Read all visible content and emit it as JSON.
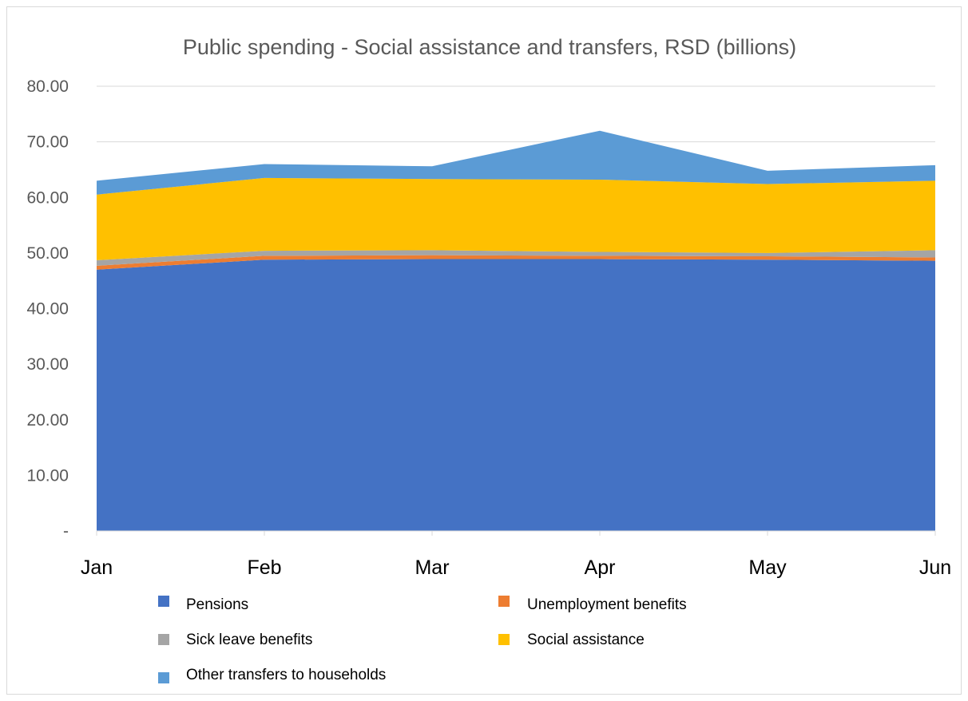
{
  "chart_data": {
    "type": "area",
    "stacked": true,
    "title": "Public spending - Social assistance and transfers, RSD (billions)",
    "xlabel": "",
    "ylabel": "",
    "categories": [
      "Jan",
      "Feb",
      "Mar",
      "Apr",
      "May",
      "Jun"
    ],
    "ylim": [
      0,
      80
    ],
    "yticks": [
      {
        "value": 0,
        "label": "-"
      },
      {
        "value": 10,
        "label": "10.00"
      },
      {
        "value": 20,
        "label": "20.00"
      },
      {
        "value": 30,
        "label": "30.00"
      },
      {
        "value": 40,
        "label": "40.00"
      },
      {
        "value": 50,
        "label": "50.00"
      },
      {
        "value": 60,
        "label": "60.00"
      },
      {
        "value": 70,
        "label": "70.00"
      },
      {
        "value": 80,
        "label": "80.00"
      }
    ],
    "grid": true,
    "legend_position": "bottom",
    "series": [
      {
        "name": "Pensions",
        "color": "#4472C4",
        "values": [
          47.0,
          48.8,
          48.9,
          48.9,
          48.8,
          48.6
        ]
      },
      {
        "name": "Unemployment benefits",
        "color": "#ED7D31",
        "values": [
          0.7,
          0.7,
          0.7,
          0.6,
          0.6,
          0.6
        ]
      },
      {
        "name": "Sick leave benefits",
        "color": "#A5A5A5",
        "values": [
          1.0,
          0.9,
          0.9,
          0.7,
          0.6,
          1.3
        ]
      },
      {
        "name": "Social assistance",
        "color": "#FFC000",
        "values": [
          11.8,
          13.1,
          12.8,
          13.0,
          12.4,
          12.5
        ]
      },
      {
        "name": "Other transfers to households",
        "color": "#5B9BD5",
        "values": [
          2.5,
          2.5,
          2.3,
          8.8,
          2.4,
          2.8
        ]
      }
    ]
  }
}
